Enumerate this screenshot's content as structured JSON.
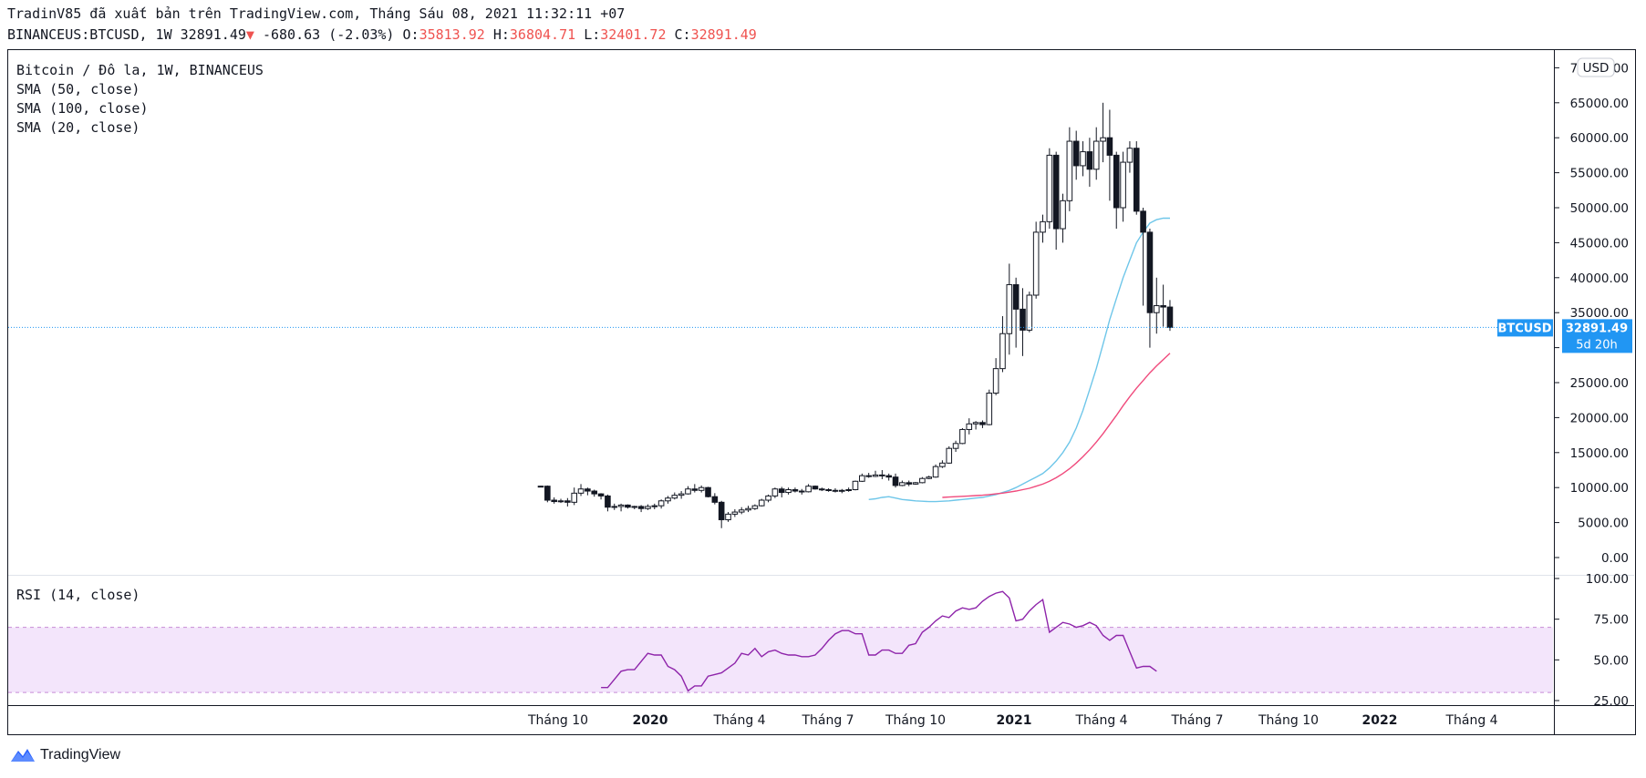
{
  "header": {
    "line1": "TradinV85 đã xuất bản trên TradingView.com, Tháng Sáu 08, 2021 11:32:11 +07",
    "symbol": "BINANCEUS:BTCUSD, 1W",
    "last": "32891.49",
    "arrow": "▼",
    "change": "-680.63 (-2.03%)",
    "o_label": "O:",
    "o_value": "35813.92",
    "h_label": "H:",
    "h_value": "36804.71",
    "l_label": "L:",
    "l_value": "32401.72",
    "c_label": "C:",
    "c_value": "32891.49"
  },
  "legend": {
    "title": "Bitcoin / Đô la, 1W, BINANCEUS",
    "sma1": "SMA (50, close)",
    "sma2": "SMA (100, close)",
    "sma3": "SMA (20, close)",
    "rsi": "RSI (14, close)"
  },
  "currency": "USD",
  "price_tag": {
    "symbol": "BTCUSD",
    "price": "32891.49",
    "countdown": "5d 20h"
  },
  "footer": {
    "brand": "TradingView"
  },
  "colors": {
    "sma20": "#6ec6e9",
    "sma50": "#f04a7c",
    "rsi": "#8e24aa",
    "rsi_band": "#f3e5fb",
    "price_line": "#2196f3",
    "tag": "#2196f3"
  },
  "chart_data": [
    {
      "type": "candlestick",
      "interval": "1W",
      "ylim": [
        0,
        70000
      ],
      "yticks": [
        "70000.00",
        "65000.00",
        "60000.00",
        "55000.00",
        "50000.00",
        "45000.00",
        "40000.00",
        "35000.00",
        "30000.00",
        "25000.00",
        "20000.00",
        "15000.00",
        "10000.00",
        "5000.00",
        "0.00"
      ],
      "xticks": [
        "Tháng 10",
        "2020",
        "Tháng 4",
        "Tháng 7",
        "Tháng 10",
        "2021",
        "Tháng 4",
        "Tháng 7",
        "Tháng 10",
        "2022",
        "Tháng 4"
      ],
      "candles": [
        [
          10200,
          10250,
          10150,
          10200
        ],
        [
          10200,
          10300,
          7900,
          8200
        ],
        [
          8200,
          8600,
          7700,
          8000
        ],
        [
          8000,
          8400,
          7800,
          8100
        ],
        [
          8100,
          8500,
          7300,
          7900
        ],
        [
          7900,
          10000,
          7500,
          9200
        ],
        [
          9200,
          10500,
          8800,
          9800
        ],
        [
          9800,
          10000,
          8900,
          9500
        ],
        [
          9500,
          9700,
          8700,
          9100
        ],
        [
          9100,
          9200,
          8300,
          8800
        ],
        [
          8800,
          9000,
          6600,
          7200
        ],
        [
          7200,
          7700,
          6800,
          7300
        ],
        [
          7300,
          7700,
          6600,
          7500
        ],
        [
          7500,
          7600,
          7000,
          7200
        ],
        [
          7200,
          7400,
          6900,
          7300
        ],
        [
          7300,
          7500,
          6500,
          7000
        ],
        [
          7000,
          7600,
          6800,
          7300
        ],
        [
          7300,
          7700,
          6900,
          7400
        ],
        [
          7400,
          8300,
          7000,
          8100
        ],
        [
          8100,
          8800,
          7700,
          8500
        ],
        [
          8500,
          9300,
          8300,
          8900
        ],
        [
          8900,
          9500,
          8400,
          9100
        ],
        [
          9100,
          10200,
          9000,
          9800
        ],
        [
          9800,
          10500,
          9300,
          9600
        ],
        [
          9600,
          10300,
          9300,
          10000
        ],
        [
          10000,
          10100,
          8600,
          8700
        ],
        [
          8700,
          9200,
          7600,
          7900
        ],
        [
          7900,
          8100,
          4200,
          5400
        ],
        [
          5400,
          6500,
          5100,
          6200
        ],
        [
          6200,
          6900,
          5800,
          6500
        ],
        [
          6500,
          7200,
          6200,
          6800
        ],
        [
          6800,
          7400,
          6500,
          7000
        ],
        [
          7000,
          7600,
          6800,
          7400
        ],
        [
          7400,
          8400,
          7300,
          8200
        ],
        [
          8200,
          9000,
          7900,
          8800
        ],
        [
          8800,
          10000,
          8500,
          9800
        ],
        [
          9800,
          10100,
          8600,
          9300
        ],
        [
          9300,
          10000,
          9000,
          9700
        ],
        [
          9700,
          10000,
          9300,
          9500
        ],
        [
          9500,
          9800,
          9000,
          9400
        ],
        [
          9400,
          10500,
          9300,
          10200
        ],
        [
          10200,
          10300,
          9700,
          9800
        ],
        [
          9800,
          10000,
          9500,
          9700
        ],
        [
          9700,
          9900,
          9400,
          9600
        ],
        [
          9600,
          9900,
          9300,
          9500
        ],
        [
          9500,
          9800,
          9200,
          9600
        ],
        [
          9600,
          10000,
          9400,
          9700
        ],
        [
          9700,
          11000,
          9600,
          10900
        ],
        [
          10900,
          12000,
          10800,
          11700
        ],
        [
          11700,
          12100,
          11400,
          11600
        ],
        [
          11600,
          12400,
          11500,
          11800
        ],
        [
          11800,
          12500,
          11200,
          11700
        ],
        [
          11700,
          12000,
          11000,
          11500
        ],
        [
          11500,
          12000,
          10000,
          10300
        ],
        [
          10300,
          11000,
          10200,
          10700
        ],
        [
          10700,
          11000,
          10200,
          10500
        ],
        [
          10500,
          10800,
          10400,
          10700
        ],
        [
          10700,
          11500,
          10600,
          11300
        ],
        [
          11300,
          11700,
          11200,
          11500
        ],
        [
          11500,
          13300,
          11400,
          13000
        ],
        [
          13000,
          13900,
          12800,
          13500
        ],
        [
          13500,
          15900,
          13400,
          15600
        ],
        [
          15600,
          16700,
          15100,
          16300
        ],
        [
          16300,
          18500,
          16200,
          18300
        ],
        [
          18300,
          19900,
          17600,
          19100
        ],
        [
          19100,
          19500,
          18300,
          19300
        ],
        [
          19300,
          19600,
          18500,
          19000
        ],
        [
          19000,
          24000,
          18900,
          23500
        ],
        [
          23500,
          28500,
          23200,
          27000
        ],
        [
          27000,
          34500,
          26500,
          32000
        ],
        [
          32000,
          42000,
          29000,
          39000
        ],
        [
          39000,
          40000,
          30000,
          35500
        ],
        [
          35500,
          38500,
          28800,
          32500
        ],
        [
          32500,
          38000,
          32200,
          37500
        ],
        [
          37500,
          48000,
          37000,
          46500
        ],
        [
          46500,
          49000,
          45000,
          48000
        ],
        [
          48000,
          58500,
          47000,
          57500
        ],
        [
          57500,
          58000,
          44000,
          47000
        ],
        [
          47000,
          52000,
          45000,
          51000
        ],
        [
          51000,
          61500,
          49500,
          59500
        ],
        [
          59500,
          61000,
          54000,
          56000
        ],
        [
          56000,
          59500,
          54500,
          58000
        ],
        [
          58000,
          60000,
          53000,
          55500
        ],
        [
          55500,
          61500,
          54000,
          59500
        ],
        [
          59500,
          65000,
          56500,
          60000
        ],
        [
          60000,
          64000,
          51000,
          57500
        ],
        [
          57500,
          58000,
          47000,
          50000
        ],
        [
          50000,
          58000,
          48000,
          56500
        ],
        [
          56500,
          59500,
          55000,
          58500
        ],
        [
          58500,
          59500,
          49000,
          49500
        ],
        [
          49500,
          50000,
          36000,
          46500
        ],
        [
          46500,
          47000,
          30000,
          35000
        ],
        [
          35000,
          40000,
          32000,
          36000
        ],
        [
          36000,
          39000,
          33000,
          35800
        ],
        [
          35800,
          36804,
          32401,
          32891
        ]
      ],
      "series": [
        {
          "name": "SMA (20, close)",
          "values": [
            8300,
            8400,
            8600,
            8700,
            8500,
            8300,
            8200,
            8100,
            8050,
            8000,
            8000,
            8050,
            8100,
            8200,
            8300,
            8400,
            8500,
            8600,
            8800,
            9000,
            9300,
            9600,
            10000,
            10500,
            11000,
            11500,
            12000,
            12800,
            13800,
            15000,
            16500,
            18500,
            21000,
            24000,
            27000,
            30500,
            34000,
            37000,
            40000,
            42500,
            45000,
            46500,
            47800,
            48300,
            48500,
            48500
          ]
        },
        {
          "name": "SMA (50, close)",
          "values": [
            8600,
            8650,
            8700,
            8750,
            8800,
            8850,
            8900,
            9000,
            9100,
            9200,
            9350,
            9500,
            9700,
            9900,
            10200,
            10500,
            10900,
            11400,
            12000,
            12700,
            13500,
            14400,
            15400,
            16500,
            17700,
            19000,
            20300,
            21700,
            23000,
            24200,
            25300,
            26400,
            27400,
            28300,
            29200
          ]
        }
      ]
    },
    {
      "type": "line",
      "title": "RSI (14, close)",
      "ylim": [
        25,
        100
      ],
      "yticks": [
        "100.00",
        "75.00",
        "50.00",
        "25.00"
      ],
      "bands": [
        30,
        70
      ],
      "values": [
        33,
        33,
        38,
        43,
        44,
        44,
        49,
        54,
        53,
        53,
        46,
        44,
        40,
        31,
        34,
        34,
        40,
        41,
        42,
        45,
        48,
        54,
        53,
        57,
        52,
        55,
        56,
        54,
        53,
        53,
        52,
        52,
        53,
        57,
        62,
        66,
        68,
        68,
        66,
        66,
        53,
        53,
        56,
        56,
        54,
        54,
        59,
        60,
        67,
        70,
        74,
        77,
        76,
        80,
        82,
        81,
        82,
        86,
        89,
        91,
        92,
        88,
        74,
        75,
        80,
        84,
        87,
        67,
        70,
        73,
        72,
        70,
        71,
        73,
        71,
        65,
        62,
        65,
        65,
        55,
        45,
        46,
        46,
        43
      ]
    }
  ]
}
